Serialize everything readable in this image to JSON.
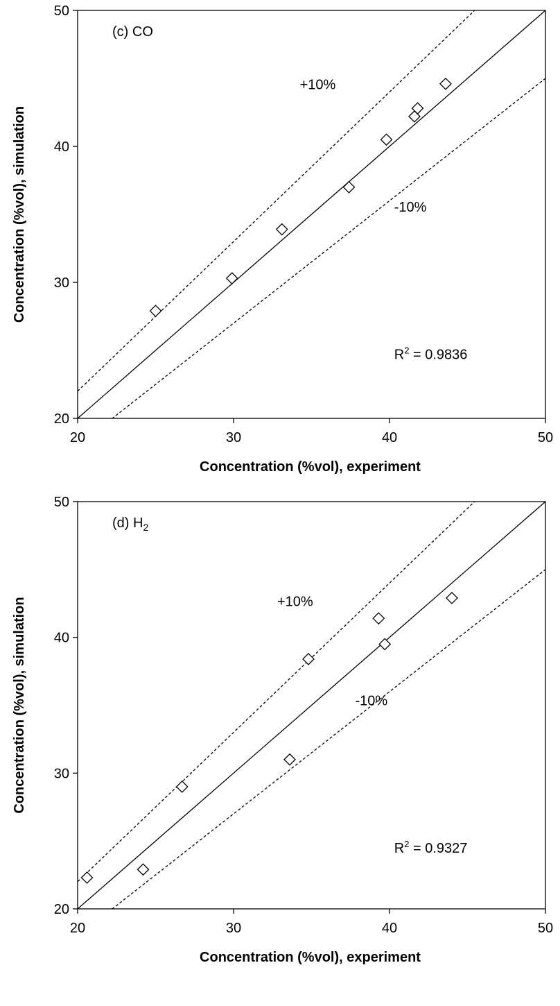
{
  "chart_data": [
    {
      "type": "scatter",
      "panel_label": "(c) CO",
      "panel_label_main": "(c) CO",
      "panel_label_sub": "",
      "xlabel": "Concentration  (%vol),  experiment",
      "ylabel": "Concentration  (%vol),  simulation",
      "xlim": [
        20,
        50
      ],
      "ylim": [
        20,
        50
      ],
      "xticks": [
        20,
        30,
        40,
        50
      ],
      "yticks": [
        20,
        30,
        40,
        50
      ],
      "grid": false,
      "reference_lines": [
        {
          "label": "",
          "slope": 1.0,
          "style": "solid"
        },
        {
          "label": "+10%",
          "slope": 1.1,
          "style": "dashed"
        },
        {
          "label": "-10%",
          "slope": 0.9,
          "style": "dashed"
        }
      ],
      "annotations": {
        "plus": "+10%",
        "minus": "-10%",
        "r2_label": "R",
        "r2_sup": "2",
        "r2_value": " = 0.9836"
      },
      "marker": "diamond-open",
      "points": [
        {
          "x": 25.0,
          "y": 27.9
        },
        {
          "x": 29.9,
          "y": 30.3
        },
        {
          "x": 33.1,
          "y": 33.9
        },
        {
          "x": 37.4,
          "y": 37.0
        },
        {
          "x": 39.8,
          "y": 40.5
        },
        {
          "x": 41.6,
          "y": 42.2
        },
        {
          "x": 41.8,
          "y": 42.8
        },
        {
          "x": 43.6,
          "y": 44.6
        }
      ]
    },
    {
      "type": "scatter",
      "panel_label": "(d) H2",
      "panel_label_main": "(d) H",
      "panel_label_sub": "2",
      "xlabel": "Concentration  (%vol),  experiment",
      "ylabel": "Concentration  (%vol),  simulation",
      "xlim": [
        20,
        50
      ],
      "ylim": [
        20,
        50
      ],
      "xticks": [
        20,
        30,
        40,
        50
      ],
      "yticks": [
        20,
        30,
        40,
        50
      ],
      "grid": false,
      "reference_lines": [
        {
          "label": "",
          "slope": 1.0,
          "style": "solid"
        },
        {
          "label": "+10%",
          "slope": 1.1,
          "style": "dashed"
        },
        {
          "label": "-10%",
          "slope": 0.9,
          "style": "dashed"
        }
      ],
      "annotations": {
        "plus": "+10%",
        "minus": "-10%",
        "r2_label": "R",
        "r2_sup": "2",
        "r2_value": " = 0.9327"
      },
      "marker": "diamond-open",
      "points": [
        {
          "x": 20.6,
          "y": 22.3
        },
        {
          "x": 24.2,
          "y": 22.9
        },
        {
          "x": 26.7,
          "y": 29.0
        },
        {
          "x": 33.6,
          "y": 31.0
        },
        {
          "x": 34.8,
          "y": 38.4
        },
        {
          "x": 39.3,
          "y": 41.4
        },
        {
          "x": 39.7,
          "y": 39.5
        },
        {
          "x": 44.0,
          "y": 42.9
        }
      ]
    }
  ]
}
